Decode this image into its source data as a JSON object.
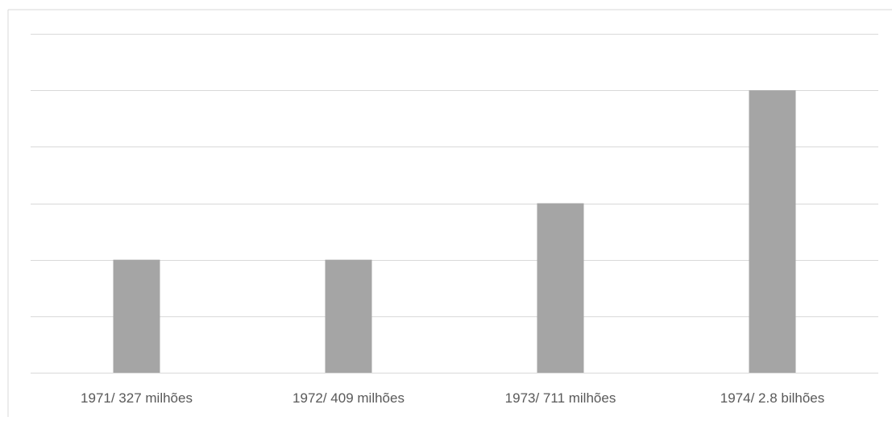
{
  "chart_data": {
    "type": "bar",
    "title": "",
    "xlabel": "",
    "ylabel": "",
    "categories": [
      "1971/ 327 milhões",
      "1972/ 409 milhões",
      "1973/ 711 milhões",
      "1974/ 2.8 bilhões"
    ],
    "values": [
      2,
      2,
      3,
      5
    ],
    "ylim": [
      0,
      6
    ],
    "y_tick_step": 1,
    "grid": true,
    "legend": "none",
    "y_tick_labels_shown": false,
    "colors": {
      "bar": "#a5a5a5",
      "grid": "#d9d9d9",
      "label": "#595959"
    }
  }
}
